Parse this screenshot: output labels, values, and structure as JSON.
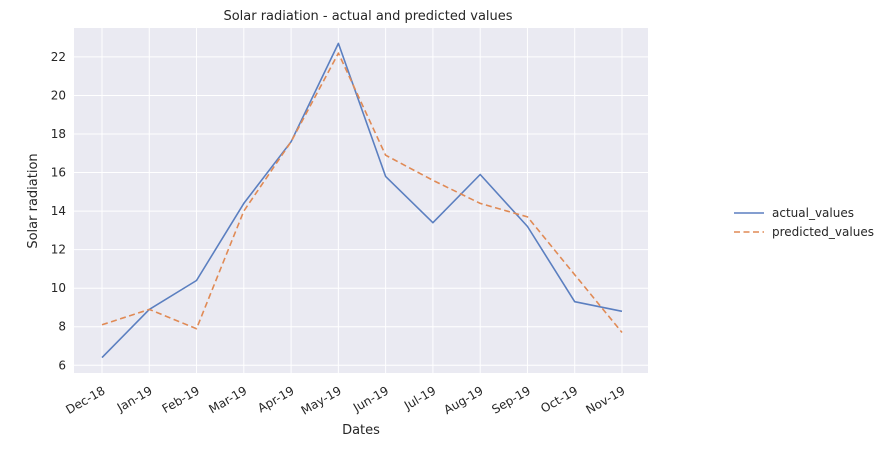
{
  "chart_data": {
    "type": "line",
    "title": "Solar radiation - actual and predicted values",
    "xlabel": "Dates",
    "ylabel": "Solar radiation",
    "categories": [
      "Dec-18",
      "Jan-19",
      "Feb-19",
      "Mar-19",
      "Apr-19",
      "May-19",
      "Jun-19",
      "Jul-19",
      "Aug-19",
      "Sep-19",
      "Oct-19",
      "Nov-19"
    ],
    "ylim": [
      5.6,
      23.5
    ],
    "yticks": [
      6,
      8,
      10,
      12,
      14,
      16,
      18,
      20,
      22
    ],
    "grid": true,
    "legend_position": "right",
    "series": [
      {
        "name": "actual_values",
        "color": "#5b7fc0",
        "style": "solid",
        "values": [
          6.4,
          8.9,
          10.4,
          14.4,
          17.6,
          22.7,
          15.8,
          13.4,
          15.9,
          13.2,
          9.3,
          8.8
        ]
      },
      {
        "name": "predicted_values",
        "color": "#e08a55",
        "style": "dashed",
        "values": [
          8.1,
          8.9,
          7.9,
          14.0,
          17.6,
          22.2,
          16.9,
          15.6,
          14.4,
          13.7,
          10.7,
          7.7
        ]
      }
    ],
    "plot_background": "#eaeaf2",
    "grid_color": "#ffffff"
  }
}
